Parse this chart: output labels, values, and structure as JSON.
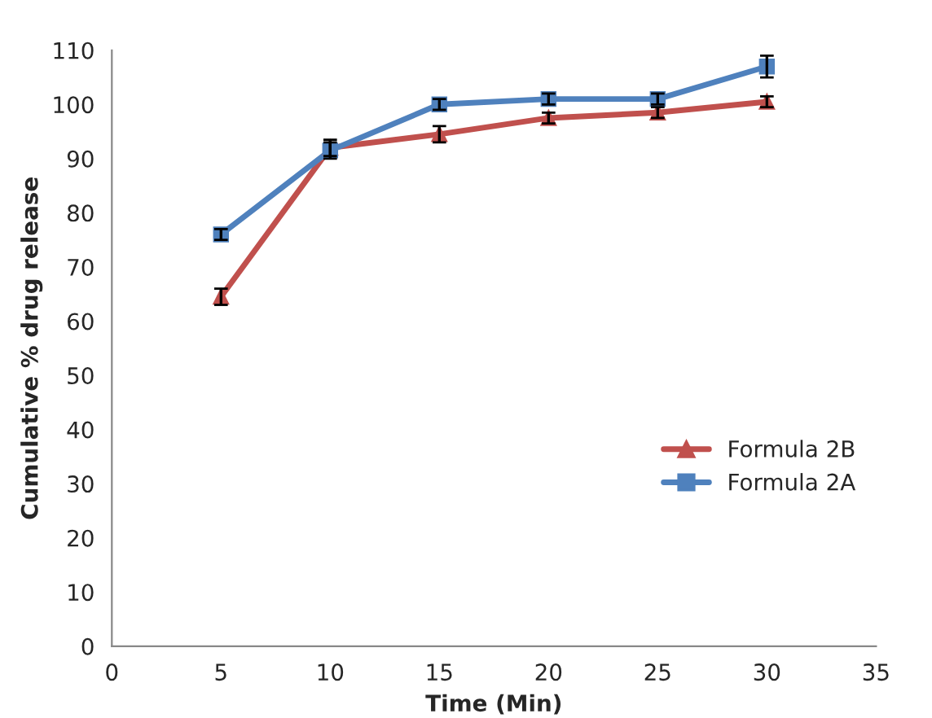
{
  "chart_data": {
    "type": "line",
    "xlabel": "Time (Min)",
    "ylabel": "Cumulative % drug release",
    "x": [
      5,
      10,
      15,
      20,
      25,
      30
    ],
    "series": [
      {
        "name": "Formula 2B",
        "color": "#c0504d",
        "marker": "triangle",
        "values": [
          64.5,
          92,
          94.5,
          97.5,
          98.5,
          100.5
        ],
        "errors": [
          1.5,
          1.5,
          1.5,
          1,
          1,
          1
        ]
      },
      {
        "name": "Formula 2A",
        "color": "#4f81bd",
        "marker": "square",
        "values": [
          76,
          91.5,
          100,
          101,
          101,
          107
        ],
        "errors": [
          1,
          1.5,
          1,
          1,
          1,
          2
        ]
      }
    ],
    "xlim": [
      0,
      35
    ],
    "xticks": [
      0,
      5,
      10,
      15,
      20,
      25,
      30,
      35
    ],
    "ylim": [
      0,
      110
    ],
    "yticks": [
      0,
      10,
      20,
      30,
      40,
      50,
      60,
      70,
      80,
      90,
      100,
      110
    ],
    "legend": "right",
    "grid": false
  }
}
